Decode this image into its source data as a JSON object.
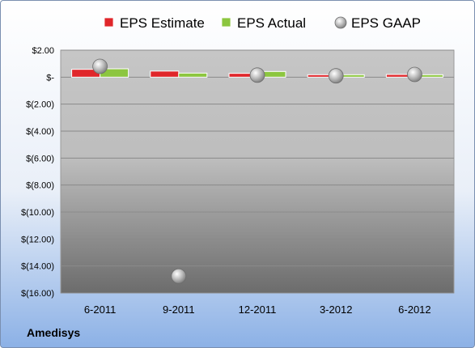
{
  "chart_data": {
    "type": "bar",
    "company": "Amedisys",
    "categories": [
      "6-2011",
      "9-2011",
      "12-2011",
      "3-2012",
      "6-2012"
    ],
    "series": [
      {
        "name": "EPS Estimate",
        "kind": "bar",
        "color": "#e0262a",
        "values": [
          0.58,
          0.45,
          0.28,
          0.18,
          0.2
        ]
      },
      {
        "name": "EPS Actual",
        "kind": "bar",
        "color": "#8cc63f",
        "values": [
          0.62,
          0.3,
          0.42,
          0.18,
          0.18
        ]
      },
      {
        "name": "EPS GAAP",
        "kind": "marker",
        "color": "#b8b8b8",
        "values": [
          0.8,
          -14.75,
          0.15,
          0.1,
          0.2
        ]
      }
    ],
    "y_ticks": [
      "$2.00",
      "$-",
      "$(2.00)",
      "$(4.00)",
      "$(6.00)",
      "$(8.00)",
      "$(10.00)",
      "$(12.00)",
      "$(14.00)",
      "$(16.00)"
    ],
    "ylim": [
      -16,
      2
    ],
    "grid": true,
    "legend_position": "top"
  }
}
